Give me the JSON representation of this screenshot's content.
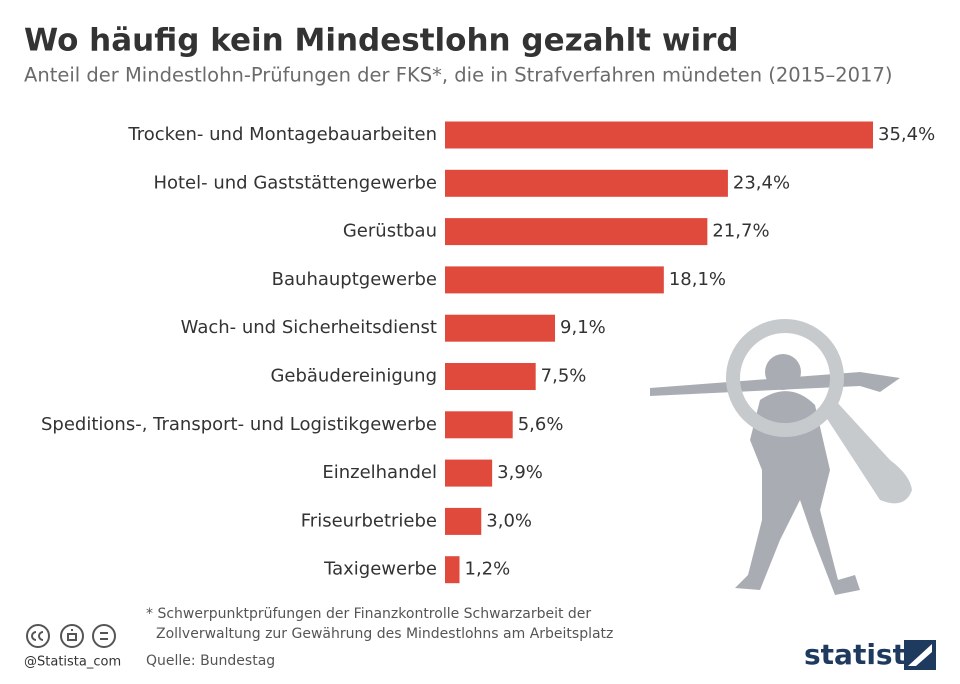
{
  "chart_data": {
    "type": "bar",
    "orientation": "horizontal",
    "title": "Wo häufig kein Mindestlohn gezahlt wird",
    "subtitle": "Anteil der Mindestlohn-Prüfungen der FKS*, die in Strafverfahren mündeten (2015–2017)",
    "categories": [
      "Trocken- und Montagebauarbeiten",
      "Hotel- und Gaststättengewerbe",
      "Gerüstbau",
      "Bauhauptgewerbe",
      "Wach- und Sicherheitsdienst",
      "Gebäudereinigung",
      "Speditions-, Transport- und Logistikgewerbe",
      "Einzelhandel",
      "Friseurbetriebe",
      "Taxigewerbe"
    ],
    "values": [
      35.4,
      23.4,
      21.7,
      18.1,
      9.1,
      7.5,
      5.6,
      3.9,
      3.0,
      1.2
    ],
    "value_labels": [
      "35,4%",
      "23,4%",
      "21,7%",
      "18,1%",
      "9,1%",
      "7,5%",
      "5,6%",
      "3,9%",
      "3,0%",
      "1,2%"
    ],
    "color": "#e04a3c"
  },
  "footer": {
    "note": [
      "* Schwerpunktprüfungen der Finanzkontrolle Schwarzarbeit der",
      "Zollverwaltung zur Gewährung des Mindestlohns am Arbeitsplatz"
    ],
    "source": "Quelle: Bundestag",
    "handle": "@Statista_com",
    "logo": "statista"
  }
}
